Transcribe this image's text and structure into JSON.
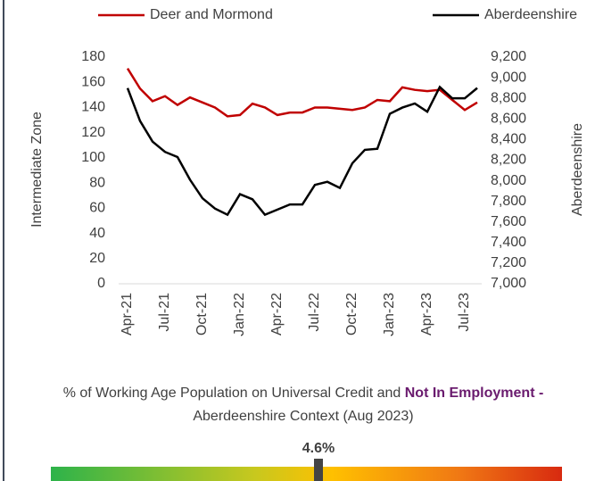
{
  "chart_data": {
    "type": "line",
    "categories": [
      "Apr-21",
      null,
      null,
      "Jul-21",
      null,
      null,
      "Oct-21",
      null,
      null,
      "Jan-22",
      null,
      null,
      "Apr-22",
      null,
      null,
      "Jul-22",
      null,
      null,
      "Oct-22",
      null,
      null,
      "Jan-23",
      null,
      null,
      "Apr-23",
      null,
      null,
      "Jul-23",
      null
    ],
    "series": [
      {
        "name": "Deer and Mormond",
        "color": "#c00000",
        "values": [
          171,
          155,
          145,
          149,
          142,
          148,
          144,
          140,
          133,
          134,
          143,
          140,
          134,
          136,
          136,
          140,
          140,
          139,
          138,
          140,
          146,
          145,
          156,
          154,
          153,
          154,
          146,
          138,
          144
        ]
      },
      {
        "name": "Aberdeenshire",
        "color": "#000000",
        "axis": "y2",
        "values": [
          8900,
          8580,
          8380,
          8280,
          8230,
          8010,
          7830,
          7730,
          7670,
          7870,
          7820,
          7670,
          7720,
          7770,
          7770,
          7960,
          7990,
          7930,
          8170,
          8300,
          8310,
          8650,
          8710,
          8750,
          8670,
          8910,
          8800,
          8800,
          8900
        ]
      }
    ],
    "ylabel": "Intermediate Zone",
    "y2label": "Aberdeenshire",
    "ylim": [
      0,
      180
    ],
    "yticks": [
      0,
      20,
      40,
      60,
      80,
      100,
      120,
      140,
      160,
      180
    ],
    "y2lim": [
      7000,
      9200
    ],
    "y2ticks": [
      {
        "value": 7000,
        "label": "7,000"
      },
      {
        "value": 7200,
        "label": "7,200"
      },
      {
        "value": 7400,
        "label": "7,400"
      },
      {
        "value": 7600,
        "label": "7,600"
      },
      {
        "value": 7800,
        "label": "7,800"
      },
      {
        "value": 8000,
        "label": "8,000"
      },
      {
        "value": 8200,
        "label": "8,200"
      },
      {
        "value": 8400,
        "label": "8,400"
      },
      {
        "value": 8600,
        "label": "8,600"
      },
      {
        "value": 8800,
        "label": "8,800"
      },
      {
        "value": 9000,
        "label": "9,000"
      },
      {
        "value": 9200,
        "label": "9,200"
      }
    ],
    "legend": "top"
  },
  "context": {
    "text_start": "% of Working Age Population on Universal Credit and ",
    "text_bold": "Not In Employment -",
    "text_end": " Aberdeenshire Context (Aug 2023)",
    "gauge_label": "4.6%"
  }
}
